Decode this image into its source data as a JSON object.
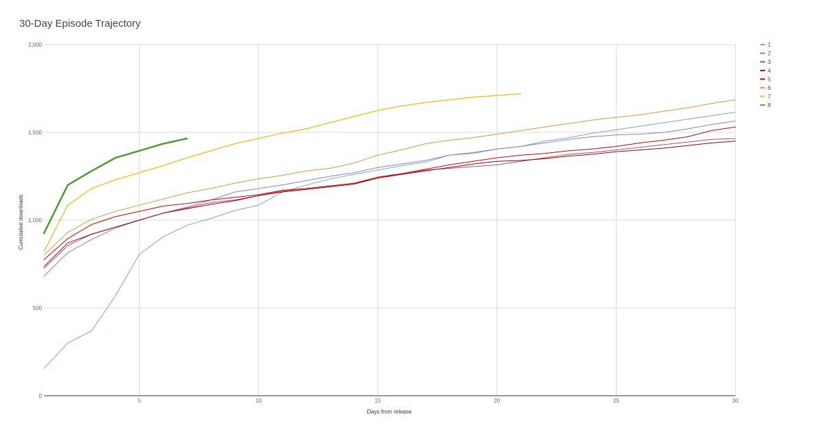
{
  "chart_data": {
    "type": "line",
    "title": "30-Day Episode Trajectory",
    "xlabel": "Days from release",
    "ylabel": "Cumulative downloads",
    "xlim": [
      1,
      30
    ],
    "ylim": [
      0,
      2000
    ],
    "x_ticks": [
      5,
      10,
      15,
      20,
      25,
      30
    ],
    "x_tick_labels": [
      "5",
      "10",
      "15",
      "20",
      "25",
      "30"
    ],
    "y_ticks": [
      0,
      500,
      1000,
      1500,
      2000
    ],
    "y_tick_labels": [
      "0",
      "500",
      "1,000",
      "1,500",
      "2,000"
    ],
    "grid": true,
    "legend_position": "right",
    "series": [
      {
        "name": "1",
        "color": "#6fa8dc",
        "width": 1,
        "x": [
          1,
          2,
          3,
          4,
          5,
          6,
          7,
          8,
          9,
          10,
          11,
          12,
          13,
          14,
          15,
          16,
          17,
          18,
          19,
          20,
          21,
          22,
          23,
          24,
          25,
          26,
          27,
          28,
          29,
          30
        ],
        "y": [
          155,
          300,
          370,
          570,
          805,
          905,
          970,
          1010,
          1055,
          1085,
          1160,
          1200,
          1235,
          1260,
          1285,
          1310,
          1330,
          1370,
          1380,
          1405,
          1420,
          1450,
          1470,
          1495,
          1515,
          1535,
          1555,
          1575,
          1595,
          1615
        ]
      },
      {
        "name": "2",
        "color": "#8e7cc3",
        "width": 1,
        "x": [
          1,
          2,
          3,
          4,
          5,
          6,
          7,
          8,
          9,
          10,
          11,
          12,
          13,
          14,
          15,
          16,
          17,
          18,
          19,
          20,
          21,
          22,
          23,
          24,
          25,
          26,
          27,
          28,
          29,
          30
        ],
        "y": [
          680,
          815,
          890,
          955,
          1000,
          1040,
          1075,
          1115,
          1160,
          1180,
          1200,
          1225,
          1250,
          1270,
          1300,
          1320,
          1340,
          1370,
          1385,
          1405,
          1420,
          1440,
          1460,
          1475,
          1485,
          1490,
          1500,
          1520,
          1545,
          1565
        ]
      },
      {
        "name": "3",
        "color": "#a64d79",
        "width": 1,
        "x": [
          1,
          2,
          3,
          4,
          5,
          6,
          7,
          8,
          9,
          10,
          11,
          12,
          13,
          14,
          15,
          16,
          17,
          18,
          19,
          20,
          21,
          22,
          23,
          24,
          25,
          26,
          27,
          28,
          29,
          30
        ],
        "y": [
          725,
          855,
          920,
          960,
          1000,
          1040,
          1070,
          1100,
          1115,
          1140,
          1165,
          1180,
          1195,
          1210,
          1240,
          1265,
          1285,
          1295,
          1305,
          1315,
          1335,
          1355,
          1375,
          1385,
          1400,
          1415,
          1430,
          1445,
          1460,
          1465
        ]
      },
      {
        "name": "4",
        "color": "#990000",
        "width": 1,
        "x": [
          1,
          2,
          3,
          4,
          5,
          6,
          7,
          8,
          9,
          10,
          11,
          12,
          13,
          14,
          15,
          16,
          17,
          18,
          19,
          20,
          21,
          22,
          23,
          24,
          25,
          26,
          27,
          28,
          29,
          30
        ],
        "y": [
          735,
          870,
          920,
          960,
          1000,
          1040,
          1065,
          1090,
          1110,
          1140,
          1160,
          1175,
          1190,
          1205,
          1240,
          1260,
          1280,
          1300,
          1320,
          1335,
          1340,
          1350,
          1365,
          1375,
          1390,
          1400,
          1410,
          1425,
          1440,
          1450
        ]
      },
      {
        "name": "5",
        "color": "#cc0000",
        "width": 1,
        "x": [
          1,
          2,
          3,
          4,
          5,
          6,
          7,
          8,
          9,
          10,
          11,
          12,
          13,
          14,
          15,
          16,
          17,
          18,
          19,
          20,
          21,
          22,
          23,
          24,
          25,
          26,
          27,
          28,
          29,
          30
        ],
        "y": [
          775,
          895,
          975,
          1020,
          1050,
          1080,
          1095,
          1115,
          1130,
          1145,
          1170,
          1180,
          1195,
          1210,
          1245,
          1265,
          1290,
          1315,
          1335,
          1355,
          1370,
          1380,
          1395,
          1405,
          1420,
          1440,
          1455,
          1475,
          1510,
          1530
        ]
      },
      {
        "name": "6",
        "color": "#e69138",
        "width": 1,
        "x": [
          1,
          2,
          3,
          4,
          5,
          6,
          7,
          8,
          9,
          10,
          11,
          12,
          13,
          14,
          15,
          16,
          17,
          18,
          19,
          20,
          21,
          22,
          23,
          24,
          25,
          26,
          27,
          28,
          29,
          30
        ],
        "y": [
          800,
          930,
          1005,
          1050,
          1085,
          1120,
          1155,
          1180,
          1210,
          1235,
          1255,
          1280,
          1295,
          1325,
          1370,
          1400,
          1435,
          1455,
          1470,
          1490,
          1510,
          1530,
          1550,
          1570,
          1585,
          1600,
          1620,
          1640,
          1665,
          1685
        ]
      },
      {
        "name": "7",
        "color": "#f1c232",
        "width": 1.5,
        "x": [
          1,
          2,
          3,
          4,
          5,
          6,
          7,
          8,
          9,
          10,
          11,
          12,
          13,
          14,
          15,
          16,
          17,
          18,
          19,
          20,
          21
        ],
        "y": [
          820,
          1085,
          1180,
          1230,
          1270,
          1310,
          1355,
          1395,
          1435,
          1465,
          1495,
          1520,
          1555,
          1590,
          1625,
          1650,
          1670,
          1685,
          1700,
          1710,
          1720
        ]
      },
      {
        "name": "8",
        "color": "#4e9a2e",
        "width": 2.5,
        "x": [
          1,
          2,
          3,
          4,
          5,
          6,
          7
        ],
        "y": [
          925,
          1200,
          1280,
          1355,
          1395,
          1435,
          1465
        ]
      }
    ]
  }
}
